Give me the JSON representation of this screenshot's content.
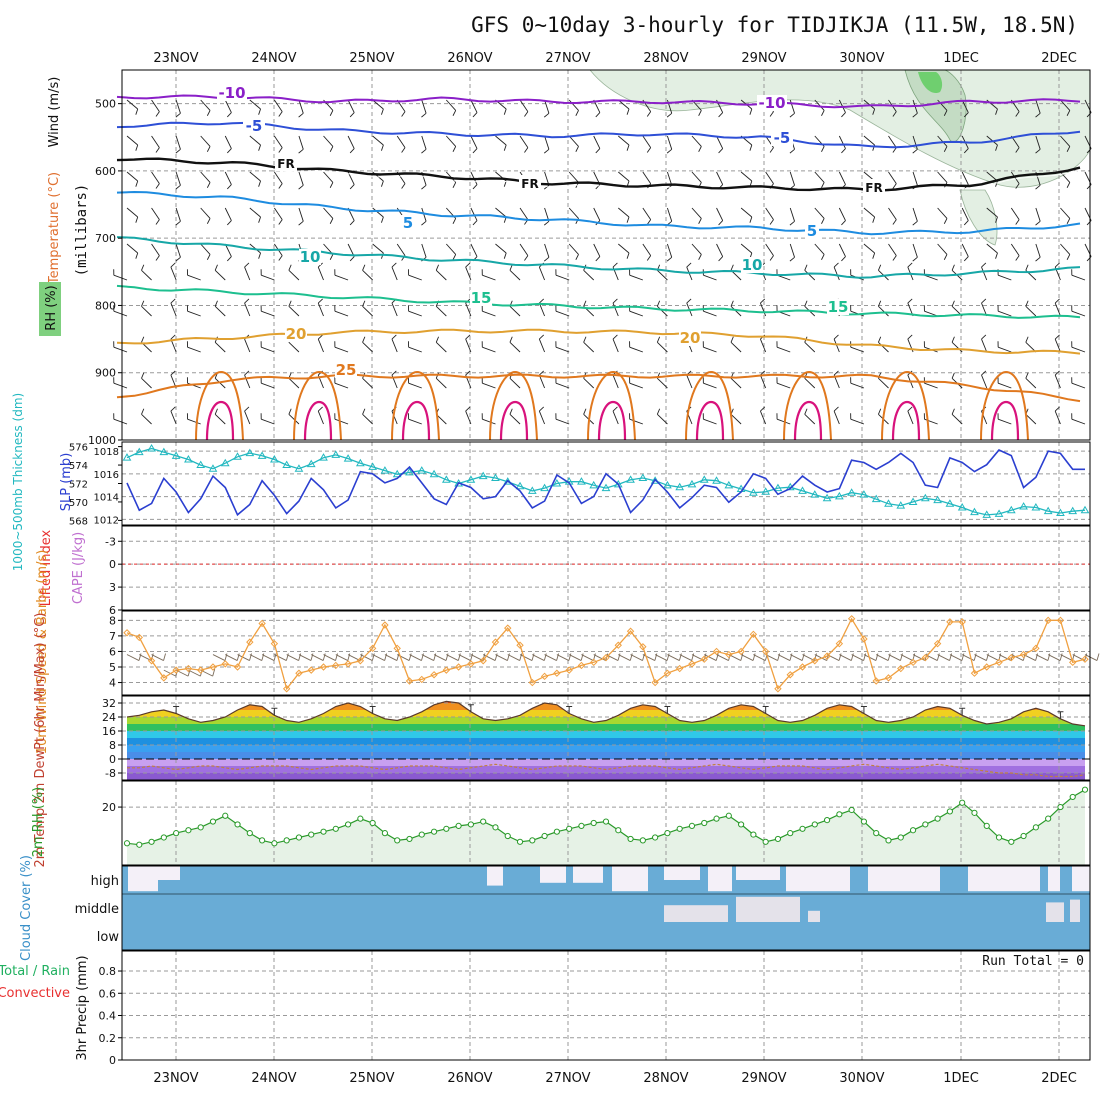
{
  "title": "GFS 0~10day 3-hourly for TIDJIKJA (11.5W, 18.5N)",
  "colors": {
    "grid": "#9a9a9a",
    "purple": "#8a1fc8",
    "blue": "#2e4fd6",
    "lightblue": "#1e8ce0",
    "teal": "#17a7a7",
    "green": "#1dbf8f",
    "orange20": "#e0a030",
    "orange25": "#e0781e",
    "magenta": "#d8127c",
    "slp": "#2b3fd0",
    "thick": "#22b8c0",
    "wind10": "#f0a040",
    "rh": "#2a9a2a",
    "cloud": "#69acd6",
    "cloudgap": "#f4f0f8",
    "red": "#e83030"
  },
  "chart_data": [
    {
      "type": "line",
      "name": "Upper air (Temperature, Wind, RH) vs pressure",
      "x_labels": [
        "23NOV",
        "24NOV",
        "25NOV",
        "26NOV",
        "27NOV",
        "28NOV",
        "29NOV",
        "30NOV",
        "1DEC",
        "2DEC"
      ],
      "y_axis_label": "(millibars)",
      "y_ticks": [
        500,
        600,
        700,
        800,
        900,
        1000
      ],
      "ylim": [
        450,
        1000
      ],
      "side_labels": [
        "Wind (m/s)",
        "Temperature (°C)",
        "RH (%)"
      ],
      "isotherms": [
        {
          "label": "-10",
          "pressure": [
            490,
            490,
            497,
            493,
            497,
            497,
            500,
            505,
            497,
            495
          ],
          "color": "purple",
          "annotations": [
            "-10",
            "-10"
          ]
        },
        {
          "label": "-5",
          "pressure": [
            533,
            528,
            540,
            545,
            548,
            545,
            550,
            565,
            557,
            540
          ],
          "color": "blue",
          "annotations": [
            "-5",
            "-5"
          ]
        },
        {
          "label": "FR",
          "pressure": [
            582,
            588,
            600,
            608,
            618,
            622,
            625,
            628,
            620,
            595
          ],
          "color": "black",
          "annotations": [
            "FR",
            "FR",
            "FR"
          ]
        },
        {
          "label": "5",
          "pressure": [
            632,
            640,
            655,
            665,
            672,
            682,
            685,
            692,
            690,
            680
          ],
          "color": "lightblue",
          "annotations": [
            "5",
            "5"
          ]
        },
        {
          "label": "10",
          "pressure": [
            700,
            712,
            722,
            732,
            740,
            748,
            752,
            757,
            752,
            745
          ],
          "color": "teal",
          "annotations": [
            "10",
            "10"
          ]
        },
        {
          "label": "15",
          "pressure": [
            773,
            780,
            787,
            795,
            800,
            805,
            808,
            812,
            815,
            818
          ],
          "color": "green",
          "annotations": [
            "15",
            "15"
          ]
        },
        {
          "label": "20",
          "pressure": [
            856,
            848,
            840,
            838,
            838,
            840,
            845,
            860,
            868,
            870
          ],
          "color": "orange20",
          "annotations": [
            "20",
            "20"
          ]
        },
        {
          "label": "25",
          "pressure": [
            935,
            910,
            905,
            905,
            905,
            905,
            905,
            905,
            920,
            940
          ],
          "color": "orange25",
          "annotations": [
            "25"
          ]
        }
      ],
      "contour_labels": [
        "-10",
        "-10",
        "-5",
        "-5",
        "FR",
        "FR",
        "FR",
        "5",
        "5",
        "10",
        "10",
        "15",
        "15",
        "20",
        "20",
        "25"
      ]
    },
    {
      "type": "line",
      "name": "SLP and 1000-500mb thickness",
      "y_left_label": "1000~500mb Thickness (dm)",
      "y_left_ticks": [
        568,
        570,
        572,
        574,
        576
      ],
      "ylim_left": [
        567.5,
        576.5
      ],
      "y_right_label": "SLP (mb)",
      "y_right_ticks": [
        1012,
        1014,
        1016,
        1018
      ],
      "ylim_right": [
        1011.5,
        1018.8
      ],
      "slp": [
        1015.2,
        1012.8,
        1013.4,
        1015.6,
        1014.4,
        1012.6,
        1013.8,
        1015.8,
        1014.8,
        1012.4,
        1013.3,
        1015.4,
        1014.1,
        1012.5,
        1013.6,
        1015.6,
        1014.6,
        1013.0,
        1013.7,
        1016.2,
        1016.0,
        1015.2,
        1015.6,
        1016.6,
        1015.2,
        1013.8,
        1013.3,
        1015.2,
        1014.8,
        1013.8,
        1014.0,
        1015.4,
        1014.5,
        1013.0,
        1013.6,
        1015.9,
        1015.2,
        1013.4,
        1014.0,
        1016.0,
        1015.1,
        1012.6,
        1013.7,
        1015.5,
        1014.4,
        1013.0,
        1013.9,
        1015.0,
        1014.8,
        1013.5,
        1014.4,
        1016.0,
        1015.6,
        1014.2,
        1014.7,
        1015.8,
        1015.0,
        1014.4,
        1014.7,
        1017.2,
        1017.0,
        1016.4,
        1017.0,
        1017.8,
        1017.0,
        1015.0,
        1014.8,
        1017.4,
        1017.0,
        1016.2,
        1016.8,
        1018.1,
        1017.6,
        1014.8,
        1015.7,
        1018.0,
        1017.8,
        1016.4,
        1016.4
      ],
      "thickness": [
        574.8,
        575.4,
        575.8,
        575.4,
        575.0,
        574.6,
        574.0,
        573.6,
        574.2,
        574.9,
        575.3,
        575.0,
        574.6,
        574.0,
        573.6,
        574.1,
        574.8,
        575.1,
        574.7,
        574.2,
        573.8,
        573.4,
        573.0,
        573.2,
        573.4,
        573.0,
        572.4,
        572.0,
        572.4,
        572.8,
        572.6,
        572.2,
        571.7,
        571.2,
        571.5,
        572.0,
        572.2,
        572.2,
        571.8,
        571.5,
        571.9,
        572.4,
        572.6,
        572.3,
        571.8,
        571.6,
        571.9,
        572.4,
        572.3,
        571.8,
        571.4,
        571.0,
        571.1,
        571.5,
        571.6,
        571.2,
        570.8,
        570.4,
        570.6,
        571.0,
        570.8,
        570.3,
        569.8,
        569.6,
        570.0,
        570.4,
        570.2,
        569.8,
        569.4,
        568.9,
        568.6,
        568.7,
        569.1,
        569.5,
        569.4,
        569.0,
        568.8,
        569.0,
        569.1
      ]
    },
    {
      "type": "line",
      "name": "Lifted Index and CAPE",
      "y_label_left": "Lifted Index",
      "y_label_right": "CAPE (J/kg)",
      "y_ticks": [
        -3,
        0,
        3,
        6
      ],
      "ylim": [
        -5,
        6
      ],
      "zero_line": 0,
      "values": []
    },
    {
      "type": "line",
      "name": "10m Wind Speed and Barbs",
      "y_label": "10m Wind Speed & Barbs (m/s)",
      "y_ticks": [
        4,
        5,
        6,
        7,
        8
      ],
      "ylim": [
        3.2,
        8.6
      ],
      "values": [
        7.2,
        6.9,
        5.4,
        4.3,
        4.8,
        4.9,
        4.8,
        5.0,
        5.2,
        5.0,
        6.6,
        7.8,
        6.5,
        3.6,
        4.6,
        4.8,
        5.0,
        5.1,
        5.2,
        5.4,
        6.2,
        7.7,
        6.2,
        4.1,
        4.2,
        4.5,
        4.8,
        5.0,
        5.2,
        5.4,
        6.6,
        7.5,
        6.4,
        4.0,
        4.4,
        4.6,
        4.8,
        5.1,
        5.3,
        5.6,
        6.4,
        7.3,
        6.3,
        4.0,
        4.6,
        4.9,
        5.2,
        5.5,
        6.0,
        5.8,
        6.0,
        7.1,
        6.0,
        3.6,
        4.5,
        5.0,
        5.4,
        5.7,
        6.5,
        8.1,
        6.8,
        4.1,
        4.3,
        4.9,
        5.3,
        5.6,
        6.5,
        7.9,
        7.9,
        4.6,
        5.0,
        5.3,
        5.6,
        5.8,
        6.2,
        8.0,
        8.0,
        5.3,
        5.5
      ],
      "barb_speed": [
        6,
        6,
        6,
        5,
        5,
        5,
        5,
        6,
        6,
        6,
        6,
        6,
        6,
        6,
        6,
        6,
        6,
        6,
        6,
        6,
        6,
        6,
        6,
        6,
        6,
        6,
        6,
        6,
        6,
        6,
        6,
        6,
        6,
        6,
        6,
        6,
        6,
        6,
        6,
        6,
        6,
        6,
        6,
        6,
        6,
        6,
        6,
        6,
        6,
        6,
        6,
        6,
        6,
        6,
        6,
        6,
        6,
        6,
        6,
        6,
        6,
        6,
        6,
        6,
        6,
        6,
        6,
        6,
        6,
        6,
        6,
        6,
        6,
        6,
        6,
        6,
        6,
        6,
        6
      ]
    },
    {
      "type": "area",
      "name": "2m Temp and DewPt",
      "y_label": "2m Temp 2m DewPt (6hr Min/Max) (°C)",
      "y_ticks": [
        -8,
        0,
        8,
        16,
        24,
        32
      ],
      "ylim": [
        -12,
        36
      ],
      "temp": [
        24,
        25,
        27,
        28,
        26,
        23,
        21,
        22,
        24,
        28,
        31,
        30,
        25,
        22,
        21,
        23,
        26,
        30,
        32,
        30,
        26,
        23,
        22,
        24,
        27,
        31,
        33,
        32,
        27,
        23,
        22,
        23,
        25,
        29,
        32,
        31,
        26,
        23,
        21,
        22,
        25,
        29,
        31,
        30,
        26,
        22,
        21,
        22,
        25,
        29,
        31,
        30,
        26,
        22,
        21,
        22,
        25,
        29,
        31,
        30,
        26,
        22,
        21,
        22,
        24,
        28,
        30,
        29,
        25,
        22,
        20,
        21,
        23,
        27,
        29,
        27,
        23,
        20,
        19
      ],
      "dewpoint": [
        -5,
        -5,
        -4,
        -5,
        -6,
        -5,
        -4,
        -4,
        -5,
        -6,
        -5,
        -4,
        -4,
        -4,
        -5,
        -6,
        -5,
        -4,
        -4,
        -4,
        -5,
        -6,
        -5,
        -4,
        -4,
        -4,
        -5,
        -6,
        -5,
        -4,
        -3,
        -4,
        -5,
        -6,
        -5,
        -4,
        -4,
        -4,
        -5,
        -6,
        -5,
        -4,
        -4,
        -4,
        -5,
        -6,
        -5,
        -4,
        -3,
        -4,
        -5,
        -6,
        -5,
        -4,
        -4,
        -4,
        -5,
        -6,
        -5,
        -4,
        -3,
        -4,
        -5,
        -6,
        -5,
        -4,
        -3,
        -4,
        -5,
        -6,
        -7,
        -8,
        -8,
        -9,
        -9,
        -10,
        -10,
        -10,
        -9
      ]
    },
    {
      "type": "line",
      "name": "2m RH",
      "y_label": "2m RH (%)",
      "y_ticks": [
        20
      ],
      "ylim": [
        0,
        29
      ],
      "values": [
        7.5,
        7.0,
        8.0,
        9.5,
        11.0,
        12.0,
        13.0,
        15.0,
        17.0,
        14.0,
        11.0,
        8.5,
        7.5,
        8.5,
        9.5,
        10.5,
        11.5,
        12.5,
        14.0,
        16.0,
        14.5,
        11.0,
        8.5,
        9.0,
        10.5,
        11.5,
        12.5,
        13.5,
        14.0,
        15.0,
        13.0,
        10.0,
        8.0,
        8.5,
        10.0,
        11.5,
        12.5,
        13.5,
        14.5,
        15.0,
        12.0,
        9.0,
        8.5,
        9.5,
        11.0,
        12.5,
        13.5,
        14.5,
        16.0,
        17.0,
        14.0,
        10.5,
        8.0,
        9.0,
        11.0,
        12.5,
        14.0,
        15.5,
        17.5,
        19.0,
        15.0,
        11.0,
        8.5,
        9.5,
        12.0,
        14.0,
        16.0,
        18.5,
        21.5,
        18.0,
        13.5,
        9.5,
        8.0,
        10.0,
        13.0,
        16.0,
        20.0,
        23.5,
        26.0
      ]
    },
    {
      "type": "heatmap",
      "name": "Cloud Cover",
      "y_label": "Cloud Cover (%)",
      "levels": [
        "high",
        "middle",
        "low"
      ]
    },
    {
      "type": "bar",
      "name": "3hr Precip",
      "y_label": "3hr Precip (mm)",
      "y_ticks": [
        0,
        0.2,
        0.4,
        0.6,
        0.8
      ],
      "ylim": [
        0,
        0.98
      ],
      "left_labels": [
        "Total / Rain",
        "Convective"
      ],
      "run_total": "Run Total = 0",
      "values": []
    }
  ]
}
